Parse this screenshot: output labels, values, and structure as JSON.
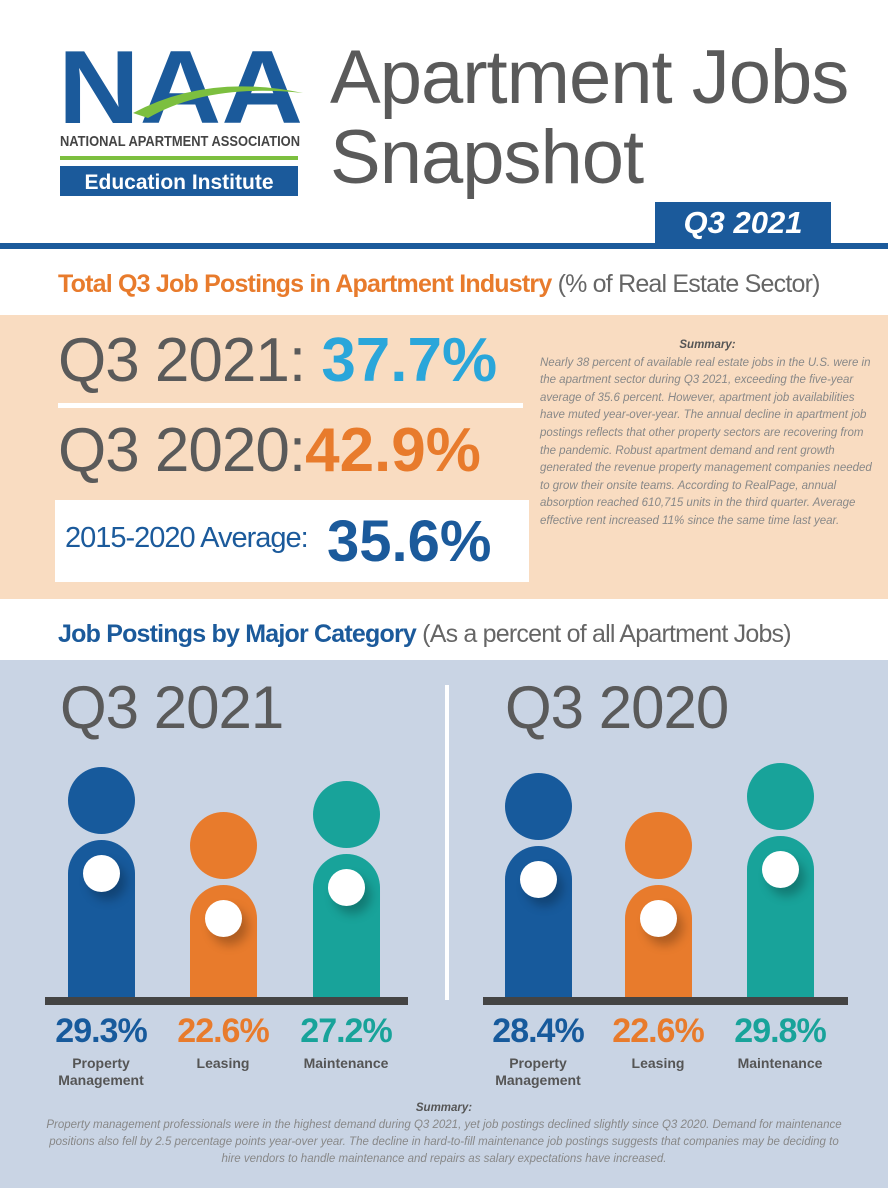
{
  "logo": {
    "letters": "NAA",
    "org": "NATIONAL APARTMENT ASSOCIATION",
    "sub": "Education Institute"
  },
  "header": {
    "title_line1": "Apartment Jobs",
    "title_line2": "Snapshot",
    "badge": "Q3 2021"
  },
  "section1": {
    "heading": "Total Q3 Job Postings in Apartment Industry",
    "heading_sub": "(% of Real Estate Sector)",
    "q3_2021_label": "Q3 2021:",
    "q3_2021_value": "37.7%",
    "q3_2020_label": "Q3 2020:",
    "q3_2020_value": "42.9%",
    "avg_label": "2015-2020 Average:",
    "avg_value": "35.6%",
    "summary_title": "Summary:",
    "summary_text": "Nearly 38 percent of available real estate jobs in the U.S. were in the apartment sector during Q3 2021, exceeding the five-year average of 35.6 percent. However, apartment job availabilities have muted year-over-year. The annual decline in apartment job postings reflects that other property sectors are recovering from the pandemic. Robust apartment demand and rent growth generated the revenue property management companies needed to grow their onsite teams. According to RealPage, annual absorption reached 610,715 units in the third quarter. Average effective rent increased 11% since the same time last year."
  },
  "section2": {
    "heading": "Job Postings by Major Category",
    "heading_sub": "(As a percent of all Apartment Jobs)",
    "summary_title": "Summary:",
    "summary_text": "Property management professionals were in the highest demand during Q3 2021, yet job postings declined slightly since Q3 2020. Demand for maintenance positions also fell by 2.5 percentage points year-over year. The decline in hard-to-fill maintenance job postings suggests that companies may be deciding to hire vendors to handle maintenance and repairs as salary expectations have increased."
  },
  "colors": {
    "pm": "#175a9c",
    "leasing": "#e87b2c",
    "maintenance": "#18a39a"
  },
  "chart_data": [
    {
      "type": "bar",
      "title": "Q3 2021",
      "categories": [
        "Property Management",
        "Leasing",
        "Maintenance"
      ],
      "values": [
        29.3,
        22.6,
        27.2
      ],
      "labels": [
        "29.3%",
        "22.6%",
        "27.2%"
      ],
      "unit": "%"
    },
    {
      "type": "bar",
      "title": "Q3 2020",
      "categories": [
        "Property Management",
        "Leasing",
        "Maintenance"
      ],
      "values": [
        28.4,
        22.6,
        29.8
      ],
      "labels": [
        "28.4%",
        "22.6%",
        "29.8%"
      ],
      "unit": "%"
    }
  ]
}
